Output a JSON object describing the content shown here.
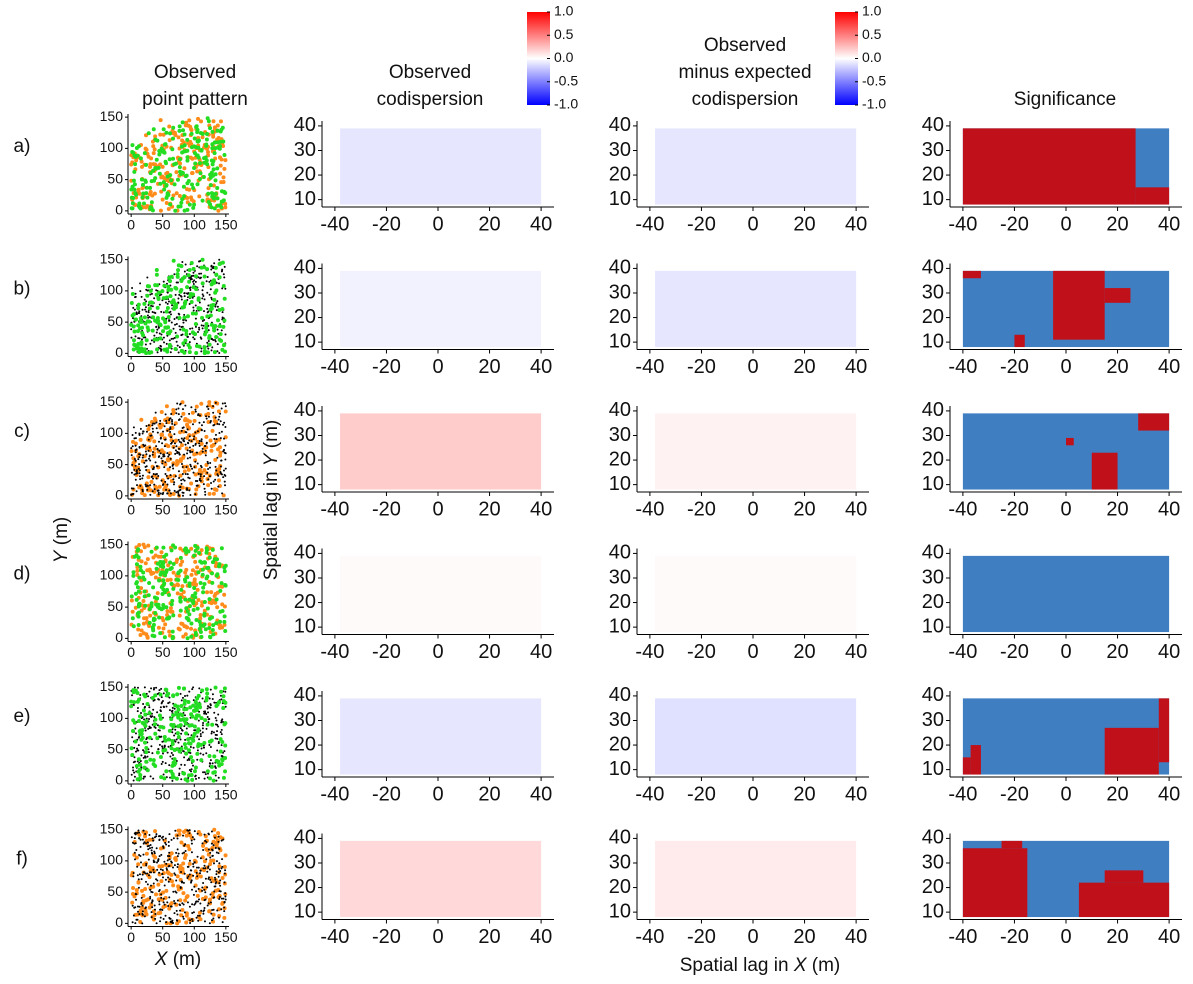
{
  "chart_data": {
    "type": "multipanel",
    "column_titles": [
      [
        "Observed",
        "point pattern"
      ],
      [
        "Observed",
        "codispersion"
      ],
      [
        "Observed",
        "minus expected",
        "codispersion"
      ],
      [
        "Significance"
      ]
    ],
    "row_labels": [
      "a)",
      "b)",
      "c)",
      "d)",
      "e)",
      "f)"
    ],
    "point_axes": {
      "xlim": [
        -5,
        155
      ],
      "ylim": [
        -5,
        155
      ],
      "xticks": [
        0,
        50,
        100,
        150
      ],
      "yticks": [
        0,
        50,
        100,
        150
      ],
      "xlabel": [
        "X",
        " (m)"
      ],
      "ylabel": [
        "Y",
        " (m)"
      ]
    },
    "lag_axes": {
      "xlim": [
        -45,
        45
      ],
      "ylim": [
        7,
        42
      ],
      "xticks": [
        -40,
        -20,
        0,
        20,
        40
      ],
      "yticks": [
        10,
        20,
        30,
        40
      ],
      "xlabel": [
        "Spatial lag in ",
        "X",
        " (m)"
      ],
      "ylabel": [
        "Spatial lag in ",
        "Y",
        " (m)"
      ],
      "extent": [
        -38,
        40,
        8,
        39
      ]
    },
    "colorbar": {
      "lim": [
        -1,
        1
      ],
      "colors": [
        "#0000ff",
        "#ffffff",
        "#ff0000"
      ],
      "ticks": [
        {
          "value": 1,
          "label": "1.0"
        },
        {
          "value": 0.5,
          "label": "0.5"
        },
        {
          "value": 0,
          "label": "0.0"
        },
        -0.5,
        {
          "value": -1,
          "label": "-1.0"
        }
      ]
    },
    "significance_colors": {
      "significant": "#c0101a",
      "not_significant": "#3f7fc1"
    },
    "rows": [
      {
        "species_colors": [
          "#ff8c1a",
          "#22dd22"
        ],
        "observed": -0.1,
        "difference": -0.1,
        "significant": [
          [
            -40,
            27,
            8,
            39
          ],
          [
            27,
            40,
            8,
            15
          ]
        ]
      },
      {
        "species_colors": [
          "#000000",
          "#22dd22"
        ],
        "observed": -0.05,
        "difference": -0.1,
        "significant": [
          [
            -40,
            -33,
            36,
            39
          ],
          [
            -5,
            15,
            11,
            39
          ],
          [
            15,
            25,
            26,
            32
          ],
          [
            -20,
            -16,
            8,
            13
          ]
        ]
      },
      {
        "species_colors": [
          "#ff8c1a",
          "#000000"
        ],
        "observed": 0.2,
        "difference": 0.05,
        "significant": [
          [
            28,
            40,
            32,
            39
          ],
          [
            10,
            20,
            8,
            23
          ],
          [
            0,
            3,
            26,
            29
          ]
        ]
      },
      {
        "species_colors": [
          "#ff8c1a",
          "#22dd22"
        ],
        "observed": 0.02,
        "difference": 0.02,
        "significant": []
      },
      {
        "species_colors": [
          "#000000",
          "#22dd22"
        ],
        "observed": -0.1,
        "difference": -0.12,
        "significant": [
          [
            -40,
            -37,
            8,
            15
          ],
          [
            -37,
            -33,
            8,
            20
          ],
          [
            15,
            36,
            8,
            27
          ],
          [
            36,
            40,
            13,
            39
          ]
        ]
      },
      {
        "species_colors": [
          "#ff8c1a",
          "#000000"
        ],
        "observed": 0.15,
        "difference": 0.08,
        "significant": [
          [
            -40,
            -15,
            8,
            36
          ],
          [
            -25,
            -17,
            36,
            39
          ],
          [
            5,
            40,
            8,
            22
          ],
          [
            15,
            30,
            22,
            27
          ]
        ]
      }
    ]
  }
}
